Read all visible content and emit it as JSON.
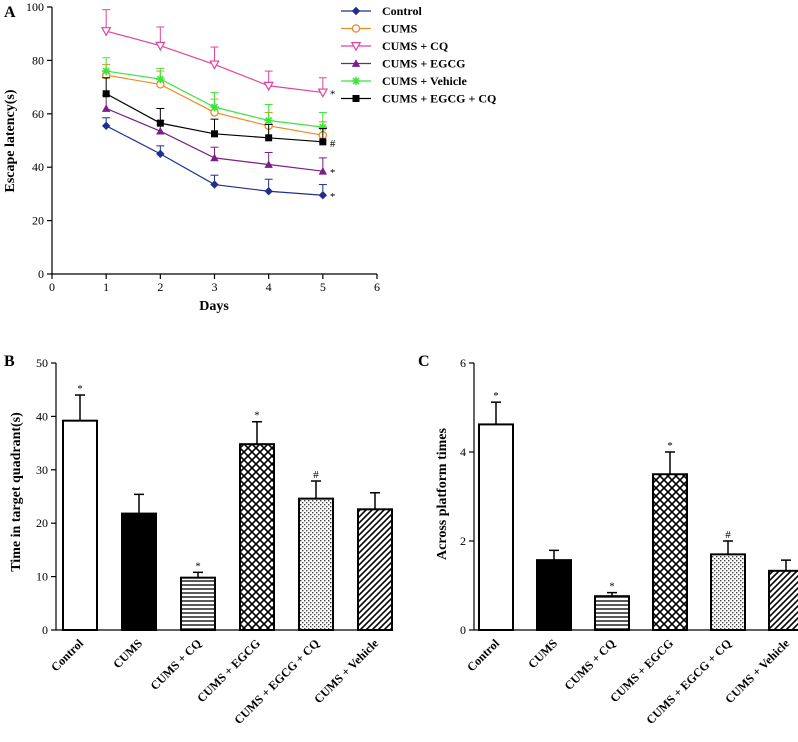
{
  "colors": {
    "control": "#1f2f8f",
    "cums": "#f08a24",
    "cums_cq": "#e0449a",
    "cums_egcg": "#7b1f86",
    "cums_vehicle": "#3ee43e",
    "cums_egcg_cq": "#000000",
    "axis": "#000000"
  },
  "chart_data": [
    {
      "panel": "A",
      "type": "line",
      "title": "",
      "xlabel": "Days",
      "ylabel": "Escape latency(s)",
      "xlim": [
        0,
        6
      ],
      "ylim": [
        0,
        100
      ],
      "xticks": [
        0,
        1,
        2,
        3,
        4,
        5,
        6
      ],
      "yticks": [
        0,
        20,
        40,
        60,
        80,
        100
      ],
      "x": [
        1,
        2,
        3,
        4,
        5
      ],
      "legend_position": "top-right",
      "series": [
        {
          "key": "control",
          "name": "Control",
          "marker": "diamond",
          "color_key": "control",
          "values": [
            55.5,
            45,
            33.5,
            31,
            29.5
          ],
          "errors": [
            3,
            3,
            3.5,
            4.5,
            4
          ],
          "sig": "*"
        },
        {
          "key": "cums",
          "name": "CUMS",
          "marker": "circle-open",
          "color_key": "cums",
          "values": [
            74.5,
            71,
            60.5,
            55.5,
            52
          ],
          "errors": [
            4,
            5,
            5,
            5,
            5
          ],
          "sig": ""
        },
        {
          "key": "cums_cq",
          "name": "CUMS + CQ",
          "marker": "triangle-down-open",
          "color_key": "cums_cq",
          "values": [
            91,
            85.5,
            78.5,
            70.5,
            68
          ],
          "errors": [
            8,
            7,
            6.5,
            5.5,
            5.5
          ],
          "sig": "*"
        },
        {
          "key": "cums_egcg",
          "name": "CUMS + EGCG",
          "marker": "triangle-up",
          "color_key": "cums_egcg",
          "values": [
            62,
            53.5,
            43.5,
            41,
            38.5
          ],
          "errors": [
            5,
            4,
            4,
            4.5,
            5
          ],
          "sig": "*"
        },
        {
          "key": "cums_vehicle",
          "name": "CUMS + Vehicle",
          "marker": "star",
          "color_key": "cums_vehicle",
          "values": [
            76,
            73,
            62.5,
            57.5,
            55
          ],
          "errors": [
            5,
            4,
            5.5,
            6,
            5.5
          ],
          "sig": ""
        },
        {
          "key": "cums_egcg_cq",
          "name": "CUMS + EGCG + CQ",
          "marker": "square",
          "color_key": "cums_egcg_cq",
          "values": [
            67.5,
            56.5,
            52.5,
            51,
            49.5
          ],
          "errors": [
            6,
            5.5,
            5.5,
            5,
            5
          ],
          "sig": "#"
        }
      ]
    },
    {
      "panel": "B",
      "type": "bar",
      "title": "",
      "xlabel": "",
      "ylabel": "Time in target quadrant(s)",
      "ylim": [
        0,
        50
      ],
      "yticks": [
        0,
        10,
        20,
        30,
        40,
        50
      ],
      "categories": [
        "Control",
        "CUMS",
        "CUMS + CQ",
        "CUMS + EGCG",
        "CUMS + EGCG + CQ",
        "CUMS + Vehicle"
      ],
      "values": [
        39.2,
        21.8,
        9.8,
        34.8,
        24.6,
        22.6
      ],
      "errors": [
        4.8,
        3.6,
        1.0,
        4.2,
        3.3,
        3.1
      ],
      "sig": [
        "*",
        "",
        "*",
        "*",
        "#",
        ""
      ],
      "fills": [
        "white",
        "black",
        "hlines",
        "crosshatch",
        "dots",
        "diagonal"
      ]
    },
    {
      "panel": "C",
      "type": "bar",
      "title": "",
      "xlabel": "",
      "ylabel": "Across platform times",
      "ylim": [
        0,
        6
      ],
      "yticks": [
        0,
        2,
        4,
        6
      ],
      "categories": [
        "Control",
        "CUMS",
        "CUMS + CQ",
        "CUMS + EGCG",
        "CUMS + EGCG + CQ",
        "CUMS + Vehicle"
      ],
      "values": [
        4.62,
        1.57,
        0.76,
        3.5,
        1.7,
        1.33
      ],
      "errors": [
        0.5,
        0.22,
        0.08,
        0.5,
        0.3,
        0.24
      ],
      "sig": [
        "*",
        "",
        "*",
        "*",
        "#",
        ""
      ],
      "fills": [
        "white",
        "black",
        "hlines",
        "crosshatch",
        "dots",
        "diagonal"
      ]
    }
  ]
}
